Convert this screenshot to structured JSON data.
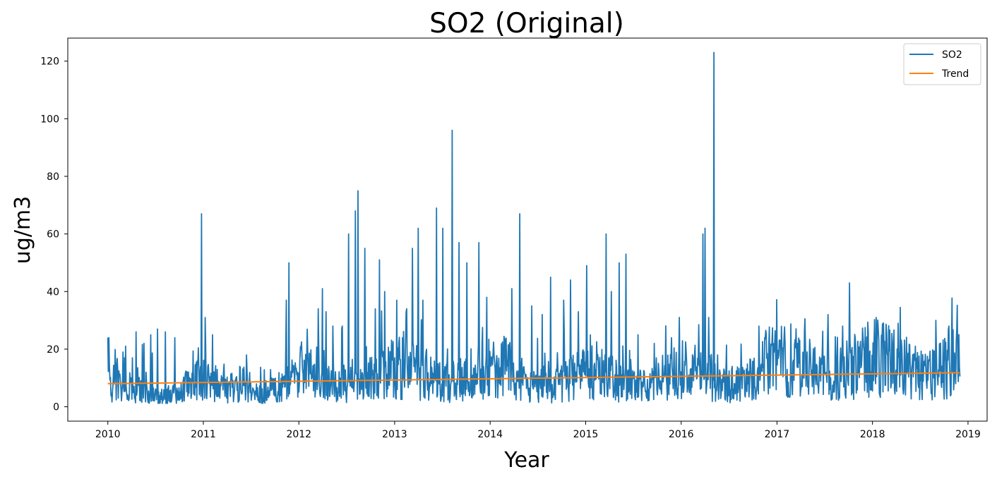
{
  "chart_data": {
    "type": "line",
    "title": "SO2 (Original)",
    "xlabel": "Year",
    "ylabel": "ug/m3",
    "x_ticks": [
      "2010",
      "2011",
      "2012",
      "2013",
      "2014",
      "2015",
      "2016",
      "2017",
      "2018",
      "2019"
    ],
    "y_ticks": [
      0,
      20,
      40,
      60,
      80,
      100,
      120
    ],
    "xlim": [
      "2009-08-01",
      "2019-03-15"
    ],
    "ylim": [
      -5,
      128
    ],
    "grid": false,
    "legend_position": "top-right",
    "series": [
      {
        "name": "SO2",
        "color": "#1f77b4",
        "peaks": [
          [
            "2010-01-05",
            24
          ],
          [
            "2010-02-10",
            3
          ],
          [
            "2010-03-01",
            19
          ],
          [
            "2010-04-05",
            17
          ],
          [
            "2010-04-20",
            26
          ],
          [
            "2010-05-20",
            22
          ],
          [
            "2010-06-15",
            25
          ],
          [
            "2010-07-10",
            27
          ],
          [
            "2010-08-10",
            26
          ],
          [
            "2010-09-15",
            24
          ],
          [
            "2010-12-10",
            16
          ],
          [
            "2010-12-25",
            67
          ],
          [
            "2011-01-08",
            31
          ],
          [
            "2011-02-05",
            25
          ],
          [
            "2011-03-20",
            12
          ],
          [
            "2011-05-20",
            14
          ],
          [
            "2011-06-15",
            18
          ],
          [
            "2011-09-20",
            10
          ],
          [
            "2011-11-15",
            37
          ],
          [
            "2011-11-25",
            50
          ],
          [
            "2012-01-10",
            20
          ],
          [
            "2012-03-15",
            34
          ],
          [
            "2012-04-01",
            41
          ],
          [
            "2012-04-15",
            33
          ],
          [
            "2012-05-10",
            28
          ],
          [
            "2012-06-15",
            28
          ],
          [
            "2012-07-10",
            60
          ],
          [
            "2012-08-05",
            68
          ],
          [
            "2012-08-15",
            75
          ],
          [
            "2012-09-10",
            55
          ],
          [
            "2012-10-20",
            34
          ],
          [
            "2012-11-05",
            51
          ],
          [
            "2012-11-25",
            40
          ],
          [
            "2013-01-10",
            37
          ],
          [
            "2013-02-15",
            33
          ],
          [
            "2013-03-10",
            55
          ],
          [
            "2013-04-01",
            62
          ],
          [
            "2013-04-20",
            37
          ],
          [
            "2013-06-10",
            69
          ],
          [
            "2013-07-05",
            62
          ],
          [
            "2013-08-10",
            96
          ],
          [
            "2013-09-05",
            57
          ],
          [
            "2013-10-05",
            50
          ],
          [
            "2013-11-20",
            57
          ],
          [
            "2013-12-20",
            38
          ],
          [
            "2014-03-01",
            23
          ],
          [
            "2014-03-25",
            41
          ],
          [
            "2014-04-25",
            67
          ],
          [
            "2014-06-10",
            35
          ],
          [
            "2014-07-20",
            32
          ],
          [
            "2014-08-20",
            45
          ],
          [
            "2014-10-10",
            37
          ],
          [
            "2014-11-05",
            44
          ],
          [
            "2014-12-05",
            33
          ],
          [
            "2015-01-05",
            49
          ],
          [
            "2015-03-20",
            60
          ],
          [
            "2015-04-10",
            40
          ],
          [
            "2015-05-10",
            50
          ],
          [
            "2015-06-05",
            53
          ],
          [
            "2015-07-20",
            25
          ],
          [
            "2015-09-20",
            22
          ],
          [
            "2015-11-25",
            24
          ],
          [
            "2015-12-25",
            31
          ],
          [
            "2016-03-25",
            60
          ],
          [
            "2016-04-01",
            62
          ],
          [
            "2016-04-15",
            31
          ],
          [
            "2016-05-05",
            123
          ],
          [
            "2016-05-20",
            18
          ],
          [
            "2016-07-15",
            14
          ],
          [
            "2016-10-25",
            28
          ],
          [
            "2017-01-15",
            21
          ],
          [
            "2017-04-20",
            20
          ],
          [
            "2017-07-15",
            32
          ],
          [
            "2017-09-10",
            28
          ],
          [
            "2017-10-05",
            43
          ],
          [
            "2018-01-15",
            31
          ],
          [
            "2018-04-10",
            29
          ],
          [
            "2018-06-15",
            21
          ],
          [
            "2018-09-01",
            30
          ],
          [
            "2018-10-20",
            28
          ],
          [
            "2018-11-20",
            27
          ]
        ]
      },
      {
        "name": "Trend",
        "color": "#ff7f0e",
        "x": [
          "2010-01-01",
          "2018-12-01"
        ],
        "values": [
          8,
          11.8
        ]
      }
    ]
  }
}
